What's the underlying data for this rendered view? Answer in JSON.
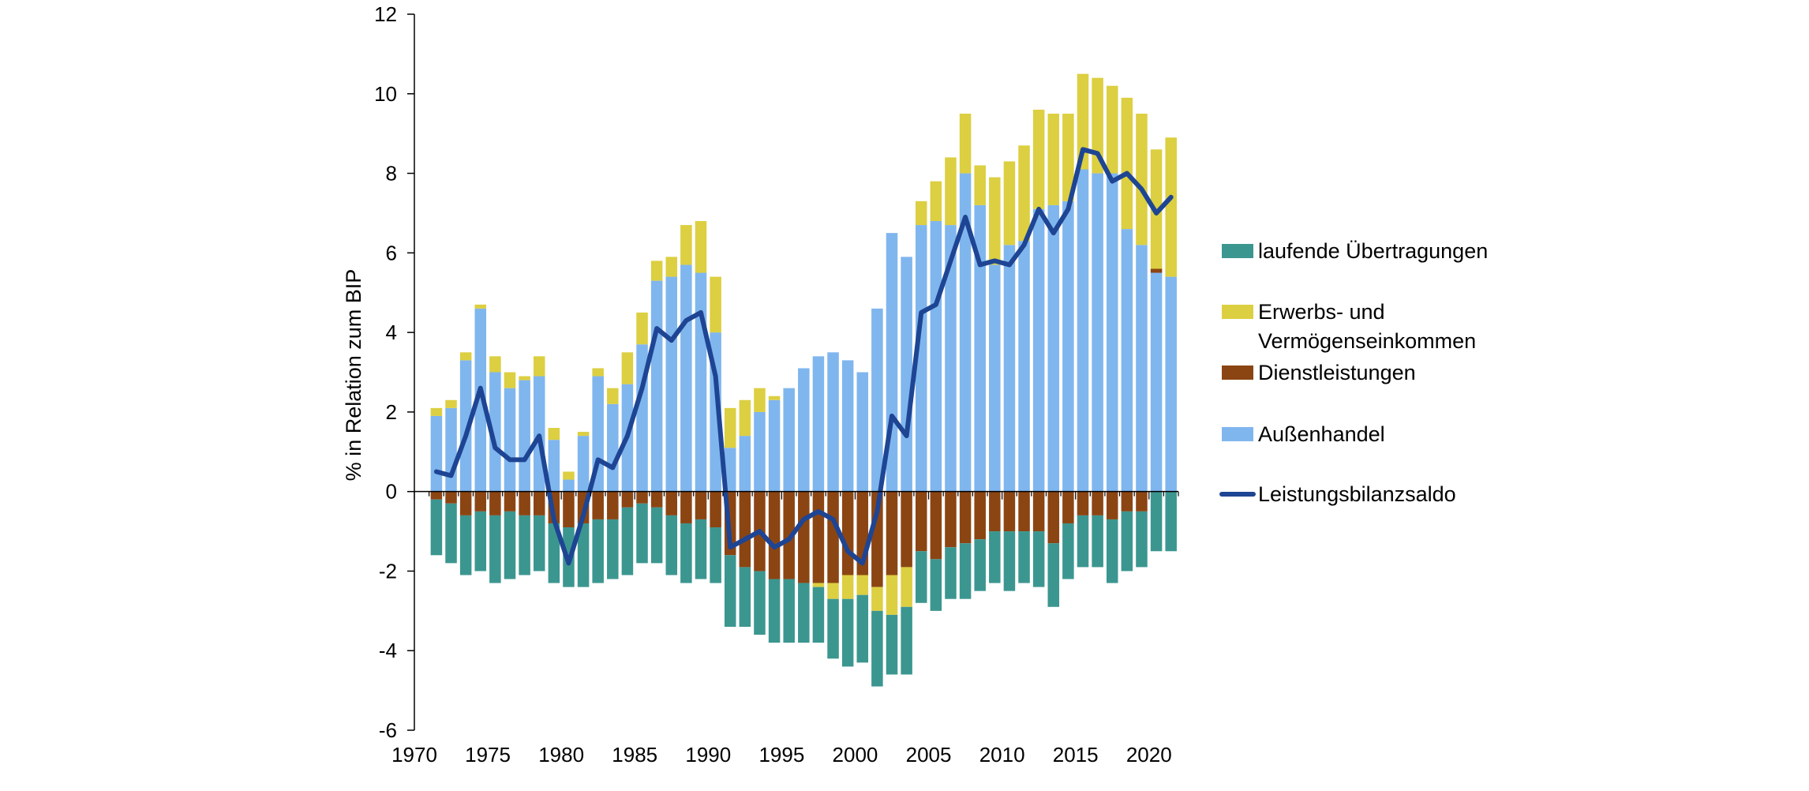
{
  "chart_data": {
    "type": "bar",
    "subtype": "stacked bar with line overlay",
    "ylabel": "% in Relation zum BIP",
    "xlabel": "",
    "ylim": [
      -6,
      12
    ],
    "yticks": [
      -6,
      -4,
      -2,
      0,
      2,
      4,
      6,
      8,
      10,
      12
    ],
    "xticks": [
      1970,
      1975,
      1980,
      1985,
      1990,
      1995,
      2000,
      2005,
      2010,
      2015,
      2020
    ],
    "grid": false,
    "legend_position": "right",
    "years": [
      1971,
      1972,
      1973,
      1974,
      1975,
      1976,
      1977,
      1978,
      1979,
      1980,
      1981,
      1982,
      1983,
      1984,
      1985,
      1986,
      1987,
      1988,
      1989,
      1990,
      1991,
      1992,
      1993,
      1994,
      1995,
      1996,
      1997,
      1998,
      1999,
      2000,
      2001,
      2002,
      2003,
      2004,
      2005,
      2006,
      2007,
      2008,
      2009,
      2010,
      2011,
      2012,
      2013,
      2014,
      2015,
      2016,
      2017,
      2018,
      2019,
      2020,
      2021
    ],
    "series": [
      {
        "name": "laufende Übertragungen",
        "color": "#3c9690",
        "kind": "bar",
        "values": [
          -1.4,
          -1.5,
          -1.5,
          -1.5,
          -1.7,
          -1.7,
          -1.5,
          -1.4,
          -1.5,
          -1.5,
          -1.6,
          -1.6,
          -1.5,
          -1.7,
          -1.5,
          -1.4,
          -1.5,
          -1.5,
          -1.5,
          -1.4,
          -1.8,
          -1.5,
          -1.6,
          -1.6,
          -1.6,
          -1.5,
          -1.4,
          -1.5,
          -1.7,
          -1.7,
          -1.9,
          -1.5,
          -1.7,
          -1.3,
          -1.3,
          -1.3,
          -1.4,
          -1.3,
          -1.3,
          -1.5,
          -1.3,
          -1.4,
          -1.6,
          -1.4,
          -1.3,
          -1.3,
          -1.6,
          -1.5,
          -1.4,
          -1.5,
          -1.5
        ]
      },
      {
        "name": "Erwerbs- und Vermögenseinkommen",
        "color": "#dccf41",
        "kind": "bar",
        "values": [
          0.2,
          0.2,
          0.2,
          0.1,
          0.4,
          0.4,
          0.1,
          0.5,
          0.3,
          0.2,
          0.1,
          0.2,
          0.4,
          0.8,
          0.8,
          0.5,
          0.5,
          1.0,
          1.3,
          1.4,
          1.0,
          0.9,
          0.6,
          0.1,
          0.0,
          0.0,
          -0.1,
          -0.4,
          -0.6,
          -0.5,
          -0.6,
          -1.0,
          -1.0,
          0.6,
          1.0,
          1.7,
          1.5,
          1.0,
          2.2,
          2.1,
          2.4,
          2.5,
          2.3,
          2.2,
          2.4,
          2.4,
          2.2,
          3.3,
          3.3,
          3.0,
          3.5
        ]
      },
      {
        "name": "Dienstleistungen",
        "color": "#8b4513",
        "kind": "bar",
        "values": [
          -0.2,
          -0.3,
          -0.6,
          -0.5,
          -0.6,
          -0.5,
          -0.6,
          -0.6,
          -0.8,
          -0.9,
          -0.8,
          -0.7,
          -0.7,
          -0.4,
          -0.3,
          -0.4,
          -0.6,
          -0.8,
          -0.7,
          -0.9,
          -1.6,
          -1.9,
          -2.0,
          -2.2,
          -2.2,
          -2.3,
          -2.3,
          -2.3,
          -2.1,
          -2.1,
          -2.4,
          -2.1,
          -1.9,
          -1.5,
          -1.7,
          -1.4,
          -1.3,
          -1.2,
          -1.0,
          -1.0,
          -1.0,
          -1.0,
          -1.3,
          -0.8,
          -0.6,
          -0.6,
          -0.7,
          -0.5,
          -0.5,
          0.1,
          0.0
        ]
      },
      {
        "name": "Außenhandel",
        "color": "#80b6ee",
        "kind": "bar",
        "values": [
          1.9,
          2.1,
          3.3,
          4.6,
          3.0,
          2.6,
          2.8,
          2.9,
          1.3,
          0.3,
          1.4,
          2.9,
          2.2,
          2.7,
          3.7,
          5.3,
          5.4,
          5.7,
          5.5,
          4.0,
          1.1,
          1.4,
          2.0,
          2.3,
          2.6,
          3.1,
          3.4,
          3.5,
          3.3,
          3.0,
          4.6,
          6.5,
          5.9,
          6.7,
          6.8,
          6.7,
          8.0,
          7.2,
          5.7,
          6.2,
          6.3,
          7.1,
          7.2,
          7.3,
          8.1,
          8.0,
          8.0,
          6.6,
          6.2,
          5.5,
          5.4
        ]
      },
      {
        "name": "Leistungsbilanzsaldo",
        "color": "#1e4593",
        "kind": "line",
        "values": [
          0.5,
          0.4,
          1.4,
          2.6,
          1.1,
          0.8,
          0.8,
          1.4,
          -0.7,
          -1.8,
          -0.6,
          0.8,
          0.6,
          1.4,
          2.6,
          4.1,
          3.8,
          4.3,
          4.5,
          2.9,
          -1.4,
          -1.2,
          -1.0,
          -1.4,
          -1.2,
          -0.7,
          -0.5,
          -0.7,
          -1.5,
          -1.8,
          -0.5,
          1.9,
          1.4,
          4.5,
          4.7,
          5.8,
          6.9,
          5.7,
          5.8,
          5.7,
          6.2,
          7.1,
          6.5,
          7.1,
          8.6,
          8.5,
          7.8,
          8.0,
          7.6,
          7.0,
          7.4
        ]
      }
    ],
    "legend_order": [
      "laufende Übertragungen",
      "Erwerbs- und Vermögenseinkommen",
      "Dienstleistungen",
      "Außenhandel",
      "Leistungsbilanzsaldo"
    ],
    "legend_lines": {
      "laufende Übertragungen": [
        "laufende Übertragungen"
      ],
      "Erwerbs- und Vermögenseinkommen": [
        "Erwerbs- und",
        "Vermögenseinkommen"
      ],
      "Dienstleistungen": [
        "Dienstleistungen"
      ],
      "Außenhandel": [
        "Außenhandel"
      ],
      "Leistungsbilanzsaldo": [
        "Leistungsbilanzsaldo"
      ]
    }
  }
}
